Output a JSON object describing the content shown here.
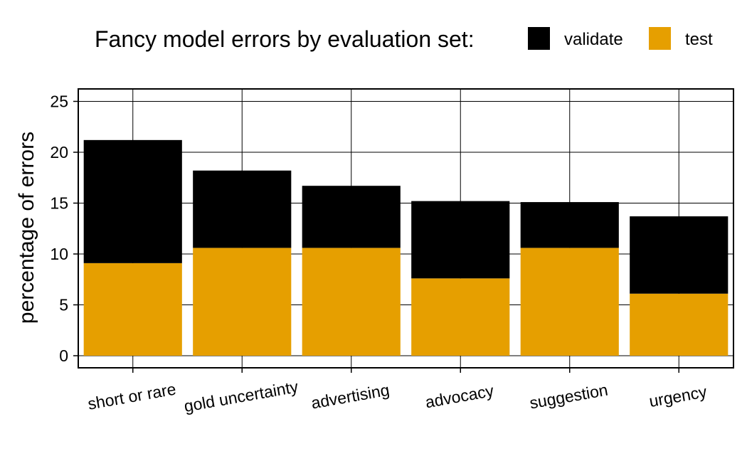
{
  "chart_data": {
    "type": "bar",
    "stacked": true,
    "title": "",
    "legend_title": "Fancy model errors by evaluation set:",
    "legend_position": "top",
    "xlabel": "",
    "ylabel": "percentage of errors",
    "ylim": [
      0,
      26
    ],
    "yticks": [
      0,
      5,
      10,
      15,
      20,
      25
    ],
    "grid": true,
    "categories": [
      "short or rare",
      "gold uncertainty",
      "advertising",
      "advocacy",
      "suggestion",
      "urgency"
    ],
    "series": [
      {
        "name": "test",
        "color": "#E69F00",
        "values": [
          9.1,
          10.6,
          10.6,
          7.6,
          10.6,
          6.1
        ]
      },
      {
        "name": "validate",
        "color": "#000000",
        "values": [
          12.1,
          7.6,
          6.1,
          7.6,
          4.5,
          7.6
        ]
      }
    ],
    "legend_order": [
      "validate",
      "test"
    ]
  }
}
